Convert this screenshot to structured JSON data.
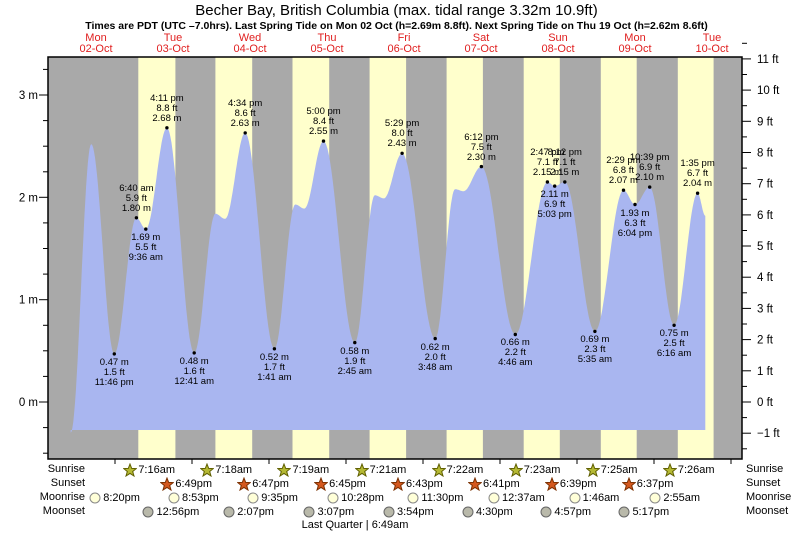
{
  "title": "Becher Bay, British Columbia (max. tidal range 3.32m 10.9ft)",
  "subtitle": "Times are PDT (UTC –7.0hrs). Last Spring Tide on Mon 02 Oct (h=2.69m 8.8ft). Next Spring Tide on Thu 19 Oct (h=2.62m 8.6ft)",
  "footer_note": "Last Quarter | 6:49am",
  "colors": {
    "day_band": "#ffffcc",
    "night_band": "#a9a9a9",
    "tide_fill": "#a9b6f0",
    "header_red": "#e02020",
    "sunrise_star": "#b5b933",
    "sunrise_star_outline": "#5f5f00",
    "sunset_star": "#d4581e",
    "sunset_star_outline": "#7a2f00",
    "moonrise_circle": "#ffffd8",
    "moonrise_outline": "#888888",
    "moonset_circle": "#b9b9aa",
    "moonset_outline": "#666666"
  },
  "chart_data": {
    "type": "area",
    "title": "Becher Bay, British Columbia tide curve",
    "y_left": {
      "unit": "m",
      "ticks": [
        0,
        1,
        2,
        3
      ]
    },
    "y_right": {
      "unit": "ft",
      "ticks": [
        -1,
        0,
        1,
        2,
        3,
        4,
        5,
        6,
        7,
        8,
        9,
        10,
        11
      ]
    },
    "days": [
      {
        "name": "Mon",
        "date": "02-Oct"
      },
      {
        "name": "Tue",
        "date": "03-Oct"
      },
      {
        "name": "Wed",
        "date": "04-Oct"
      },
      {
        "name": "Thu",
        "date": "05-Oct"
      },
      {
        "name": "Fri",
        "date": "06-Oct"
      },
      {
        "name": "Sat",
        "date": "07-Oct"
      },
      {
        "name": "Sun",
        "date": "08-Oct"
      },
      {
        "name": "Mon",
        "date": "09-Oct"
      },
      {
        "name": "Tue",
        "date": "10-Oct"
      }
    ],
    "extremes": [
      {
        "day": 0,
        "hour": 10.2,
        "m": -0.3
      },
      {
        "day": 0,
        "hour": 16.6,
        "m": 2.52
      },
      {
        "day": 0,
        "hour": 23.767,
        "m": 0.47,
        "ft": "1.5",
        "time": "11:46 pm",
        "label": "below"
      },
      {
        "day": 1,
        "hour": 6.667,
        "m": 1.8,
        "ft": "5.9",
        "time": "6:40 am",
        "label": "above"
      },
      {
        "day": 1,
        "hour": 9.6,
        "m": 1.69,
        "ft": "5.5",
        "time": "9:36 am",
        "label": "below"
      },
      {
        "day": 1,
        "hour": 16.183,
        "m": 2.68,
        "ft": "8.8",
        "time": "4:11 pm",
        "label": "above"
      },
      {
        "day": 2,
        "hour": 0.683,
        "m": 0.48,
        "ft": "1.6",
        "time": "12:41 am",
        "label": "below"
      },
      {
        "day": 2,
        "hour": 7.3,
        "m": 1.84
      },
      {
        "day": 2,
        "hour": 10.3,
        "m": 1.79
      },
      {
        "day": 2,
        "hour": 16.567,
        "m": 2.63,
        "ft": "8.6",
        "time": "4:34 pm",
        "label": "above"
      },
      {
        "day": 3,
        "hour": 1.683,
        "m": 0.52,
        "ft": "1.7",
        "time": "1:41 am",
        "label": "below"
      },
      {
        "day": 3,
        "hour": 8.2,
        "m": 1.93
      },
      {
        "day": 3,
        "hour": 11.0,
        "m": 1.89
      },
      {
        "day": 3,
        "hour": 17.0,
        "m": 2.55,
        "ft": "8.4",
        "time": "5:00 pm",
        "label": "above"
      },
      {
        "day": 4,
        "hour": 2.75,
        "m": 0.58,
        "ft": "1.9",
        "time": "2:45 am",
        "label": "below"
      },
      {
        "day": 4,
        "hour": 9.0,
        "m": 2.02
      },
      {
        "day": 4,
        "hour": 11.8,
        "m": 1.99
      },
      {
        "day": 4,
        "hour": 17.483,
        "m": 2.43,
        "ft": "8.0",
        "time": "5:29 pm",
        "label": "above"
      },
      {
        "day": 5,
        "hour": 3.8,
        "m": 0.62,
        "ft": "2.0",
        "time": "3:48 am",
        "label": "below"
      },
      {
        "day": 5,
        "hour": 10.0,
        "m": 2.08
      },
      {
        "day": 5,
        "hour": 12.6,
        "m": 2.06
      },
      {
        "day": 5,
        "hour": 18.2,
        "m": 2.3,
        "ft": "7.5",
        "time": "6:12 pm",
        "label": "above"
      },
      {
        "day": 6,
        "hour": 4.767,
        "m": 0.66,
        "ft": "2.2",
        "time": "4:46 am",
        "label": "below"
      },
      {
        "day": 6,
        "hour": 14.783,
        "m": 2.15,
        "ft": "7.1",
        "time": "2:47 pm",
        "label": "above"
      },
      {
        "day": 6,
        "hour": 17.05,
        "m": 2.11,
        "ft": "6.9",
        "time": "5:03 pm",
        "label": "below"
      },
      {
        "day": 6,
        "hour": 20.2,
        "m": 2.15,
        "ft": "7.1",
        "time": "8:12 pm",
        "label": "above"
      },
      {
        "day": 7,
        "hour": 5.583,
        "m": 0.69,
        "ft": "2.3",
        "time": "5:35 am",
        "label": "below"
      },
      {
        "day": 7,
        "hour": 14.483,
        "m": 2.07,
        "ft": "6.8",
        "time": "2:29 pm",
        "label": "above"
      },
      {
        "day": 7,
        "hour": 18.067,
        "m": 1.93,
        "ft": "6.3",
        "time": "6:04 pm",
        "label": "below"
      },
      {
        "day": 7,
        "hour": 22.65,
        "m": 2.1,
        "ft": "6.9",
        "time": "10:39 pm",
        "label": "above"
      },
      {
        "day": 8,
        "hour": 6.267,
        "m": 0.75,
        "ft": "2.5",
        "time": "6:16 am",
        "label": "below"
      },
      {
        "day": 8,
        "hour": 13.583,
        "m": 2.04,
        "ft": "6.7",
        "time": "1:35 pm",
        "label": "above"
      },
      {
        "day": 8,
        "hour": 16.0,
        "m": 1.82
      }
    ]
  },
  "astro": {
    "row_labels": [
      "Sunrise",
      "Sunset",
      "Moonrise",
      "Moonset"
    ],
    "sunrise": [
      {
        "day": 1,
        "time": "7:16am"
      },
      {
        "day": 2,
        "time": "7:18am"
      },
      {
        "day": 3,
        "time": "7:19am"
      },
      {
        "day": 4,
        "time": "7:21am"
      },
      {
        "day": 5,
        "time": "7:22am"
      },
      {
        "day": 6,
        "time": "7:23am"
      },
      {
        "day": 7,
        "time": "7:25am"
      },
      {
        "day": 8,
        "time": "7:26am"
      }
    ],
    "sunset": [
      {
        "day": 1,
        "time": "6:49pm"
      },
      {
        "day": 2,
        "time": "6:47pm"
      },
      {
        "day": 3,
        "time": "6:45pm"
      },
      {
        "day": 4,
        "time": "6:43pm"
      },
      {
        "day": 5,
        "time": "6:41pm"
      },
      {
        "day": 6,
        "time": "6:39pm"
      },
      {
        "day": 7,
        "time": "6:37pm"
      }
    ],
    "moonrise": [
      {
        "day": 0,
        "time": "8:20pm"
      },
      {
        "day": 1,
        "time": "8:53pm"
      },
      {
        "day": 2,
        "time": "9:35pm"
      },
      {
        "day": 3,
        "time": "10:28pm"
      },
      {
        "day": 4,
        "time": "11:30pm"
      },
      {
        "day": 6,
        "time": "12:37am"
      },
      {
        "day": 7,
        "time": "1:46am"
      },
      {
        "day": 8,
        "time": "2:55am"
      }
    ],
    "moonset": [
      {
        "day": 1,
        "time": "12:56pm"
      },
      {
        "day": 2,
        "time": "2:07pm"
      },
      {
        "day": 3,
        "time": "3:07pm"
      },
      {
        "day": 4,
        "time": "3:54pm"
      },
      {
        "day": 5,
        "time": "4:30pm"
      },
      {
        "day": 6,
        "time": "4:57pm"
      },
      {
        "day": 7,
        "time": "5:17pm"
      }
    ]
  }
}
